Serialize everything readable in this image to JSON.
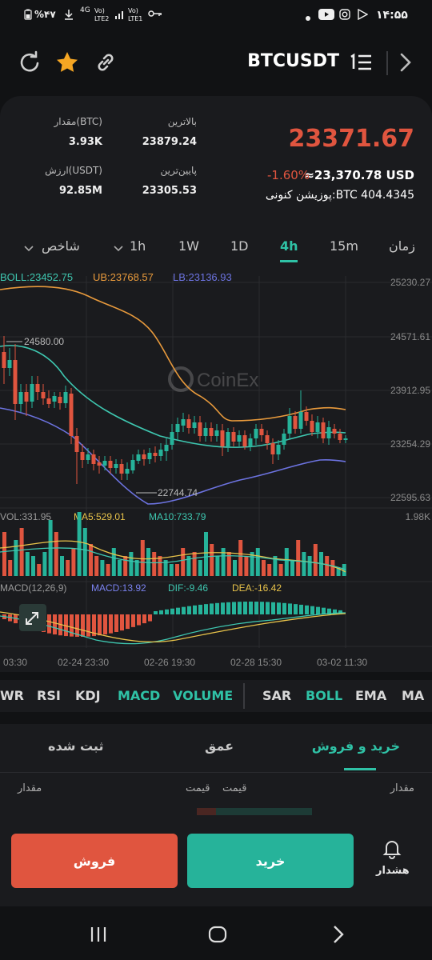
{
  "status_bar": {
    "battery": "%۴۷",
    "net_4g": "4G",
    "lte2": "LTE2",
    "lte1": "LTE1",
    "time": "۱۴:۵۵"
  },
  "header": {
    "pair": "BTCUSDT",
    "icons": [
      "refresh-icon",
      "star-icon",
      "link-icon",
      "menu-icon",
      "chevron-right-icon"
    ]
  },
  "price_card": {
    "last_price": "23371.67",
    "change": "-1.60%",
    "usd_value": "≈23,370.78 USD",
    "position": "پوزیشن کنونی:BTC 404.4345",
    "high_label": "بالاترین",
    "high_value": "23879.24",
    "low_label": "پایین‌ترین",
    "low_value": "23305.53",
    "amount_label": "مقدار(BTC)",
    "amount_value": "3.93K",
    "worth_label": "ارزش(USDT)",
    "worth_value": "92.85M"
  },
  "timeframes": {
    "time_label": "زمان",
    "m15": "15m",
    "h4": "4h",
    "d1": "1D",
    "w1": "1W",
    "h1": "1h",
    "indicator_label": "شاخص"
  },
  "chart": {
    "watermark": "CoinEx",
    "boll_labels": {
      "boll": "BOLL:23452.75",
      "ub": "UB:23768.57",
      "lb": "LB:23136.93"
    },
    "price_axis": [
      "25230.27",
      "24571.61",
      "23912.95",
      "23254.29",
      "22595.63"
    ],
    "max_marker": "24580.00",
    "min_marker": "22744.74",
    "vol_labels": {
      "vol": "VOL:331.95",
      "ma5": "MA5:529.01",
      "ma10": "MA10:733.79",
      "max": "1.98K"
    },
    "macd_labels": {
      "macd": "MACD(12,26,9)",
      "value": "MACD:13.92",
      "dif": "DIF:-9.46",
      "dea": "DEA:-16.42"
    },
    "time_axis": [
      "03:30",
      "02-24 23:30",
      "02-26 19:30",
      "02-28 15:30",
      "03-02 11:30"
    ],
    "colors": {
      "up": "#26b39a",
      "down": "#e0553f",
      "ub": "#e89a3c",
      "boll": "#3ec7b0",
      "lb": "#6c73e0",
      "accent": "#2fc2a6"
    }
  },
  "indicators": {
    "wr": "WR",
    "rsi": "RSI",
    "kdj": "KDJ",
    "macd": "MACD",
    "volume": "VOLUME",
    "sar": "SAR",
    "boll": "BOLL",
    "ema": "EMA",
    "ma": "MA"
  },
  "trade_tabs": {
    "buy_sell": "خرید و فروش",
    "depth": "عمق",
    "recorded": "ثبت شده"
  },
  "book_header": {
    "amount_right": "مقدار",
    "price_right": "قیمت",
    "price_left": "قیمت",
    "amount_left": "مقدار"
  },
  "actions": {
    "alert": "هشدار",
    "buy": "خرید",
    "sell": "فروش"
  }
}
